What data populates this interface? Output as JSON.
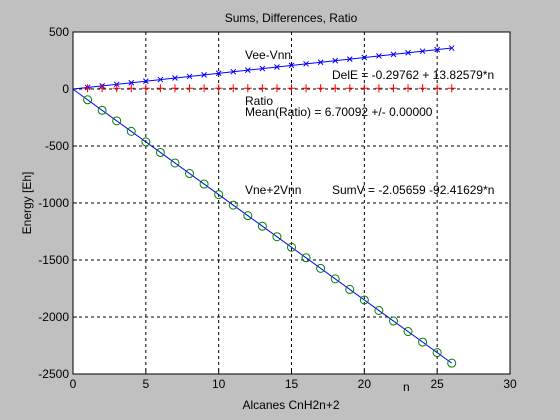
{
  "chart_data": {
    "type": "line",
    "title": "Sums, Differences, Ratio",
    "xlabel": "Alcanes CnH2n+2",
    "ylabel": "Energy [Eh]",
    "xlim": [
      0,
      30
    ],
    "ylim": [
      -2500,
      500
    ],
    "xticks": [
      0,
      5,
      10,
      15,
      20,
      25,
      30
    ],
    "yticks": [
      -2500,
      -2000,
      -1500,
      -1000,
      -500,
      0,
      500
    ],
    "grid": true,
    "x": [
      1,
      2,
      3,
      4,
      5,
      6,
      7,
      8,
      9,
      10,
      11,
      12,
      13,
      14,
      15,
      16,
      17,
      18,
      19,
      20,
      21,
      22,
      23,
      24,
      25,
      26
    ],
    "series": [
      {
        "name": "Vee-Vnn",
        "marker": "x",
        "color": "#0000ff",
        "values": [
          13.53,
          27.36,
          41.18,
          55.01,
          68.83,
          82.66,
          96.48,
          110.31,
          124.13,
          137.96,
          151.79,
          165.61,
          179.44,
          193.26,
          207.09,
          220.91,
          234.74,
          248.57,
          262.39,
          276.22,
          290.04,
          303.87,
          317.69,
          331.52,
          345.35,
          359.17
        ],
        "fit": {
          "intercept": -0.29762,
          "slope": 13.82579
        }
      },
      {
        "name": "Ratio",
        "marker": "+",
        "color": "#ff0000",
        "values": [
          6.7,
          6.7,
          6.7,
          6.7,
          6.7,
          6.7,
          6.7,
          6.7,
          6.7,
          6.7,
          6.7,
          6.7,
          6.7,
          6.7,
          6.7,
          6.7,
          6.7,
          6.7,
          6.7,
          6.7,
          6.7,
          6.7,
          6.7,
          6.7,
          6.7,
          6.7
        ]
      },
      {
        "name": "Vne+2Vnn",
        "marker": "o",
        "color": "#008000",
        "values": [
          -94.47,
          -186.89,
          -279.31,
          -371.72,
          -464.14,
          -556.56,
          -648.97,
          -741.39,
          -833.81,
          -926.22,
          -1018.64,
          -1111.06,
          -1203.47,
          -1295.89,
          -1388.3,
          -1480.72,
          -1573.14,
          -1665.55,
          -1757.97,
          -1850.39,
          -1942.8,
          -2035.22,
          -2127.64,
          -2220.05,
          -2312.47,
          -2404.89
        ],
        "fit": {
          "intercept": -2.05659,
          "slope": -92.41629
        }
      }
    ],
    "annotations": {
      "vee_label": "Vee-Vnn",
      "dele_label": "DelE = -0.29762 + 13.82579*n",
      "ratio_label": "Ratio",
      "mean_ratio_label": "Mean(Ratio) =  6.70092 +/- 0.00000",
      "vne_label": "Vne+2Vnn",
      "sumv_label": "SumV = -2.05659 -92.41629*n",
      "n_label": "n"
    },
    "colors": {
      "fit_line": "#0000ff",
      "background": "#c0c0c0",
      "plot_bg": "#ffffff"
    }
  }
}
